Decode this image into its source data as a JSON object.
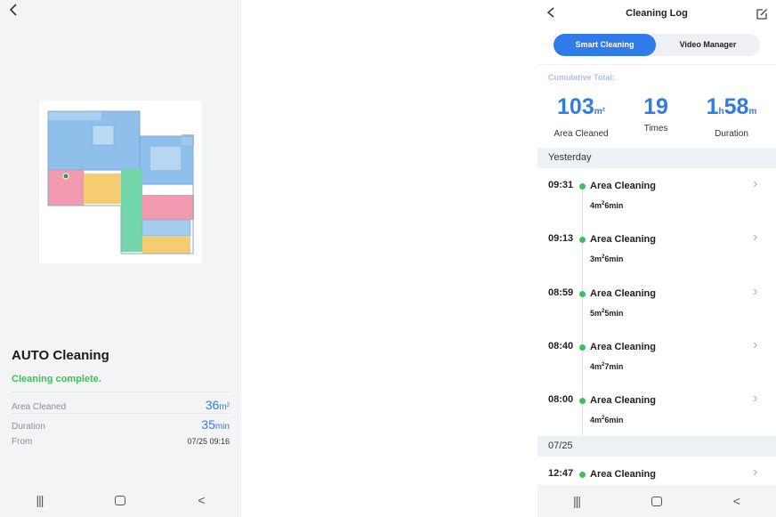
{
  "left": {
    "back_icon": "chevron-left-icon",
    "title": "AUTO Cleaning",
    "status": "Cleaning complete.",
    "rows": [
      {
        "label": "Area Cleaned",
        "value": "36",
        "unit": "m²"
      },
      {
        "label": "Duration",
        "value": "35",
        "unit": "min"
      },
      {
        "label": "From",
        "value": "07/25 09:16",
        "unit": ""
      }
    ],
    "map_colors": {
      "blue": "#7eb6e8",
      "pink": "#f08fa3",
      "yellow": "#f5c96a",
      "green": "#6fd6a6"
    },
    "nav": {
      "recents": "|||",
      "home": "home-icon",
      "back": "<"
    }
  },
  "right": {
    "title": "Cleaning Log",
    "back_icon": "chevron-left-icon",
    "edit_icon": "edit-icon",
    "tabs": [
      {
        "label": "Smart Cleaning",
        "active": true
      },
      {
        "label": "Video Manager",
        "active": false
      }
    ],
    "cumulative_label": "Cumulative Total:",
    "stats": {
      "area": {
        "value": "103",
        "unit": "m²",
        "label": "Area Cleaned"
      },
      "times": {
        "value": "19",
        "label": "Times"
      },
      "duration": {
        "hours": "1",
        "h_unit": "h",
        "minutes": "58",
        "m_unit": "m",
        "label": "Duration"
      }
    },
    "sections": [
      {
        "label": "Yesterday",
        "entries": [
          {
            "time": "09:31",
            "name": "Area Cleaning",
            "area": "4",
            "duration": "6"
          },
          {
            "time": "09:13",
            "name": "Area Cleaning",
            "area": "3",
            "duration": "6"
          },
          {
            "time": "08:59",
            "name": "Area Cleaning",
            "area": "5",
            "duration": "5"
          },
          {
            "time": "08:40",
            "name": "Area Cleaning",
            "area": "4",
            "duration": "7"
          },
          {
            "time": "08:00",
            "name": "Area Cleaning",
            "area": "4",
            "duration": "6"
          }
        ]
      },
      {
        "label": "07/25",
        "entries": [
          {
            "time": "12:47",
            "name": "Area Cleaning",
            "area": "",
            "duration": ""
          }
        ]
      }
    ],
    "detail_units": {
      "area": "m²",
      "duration": "min"
    },
    "accent": "#2f7be8",
    "dot_color": "#3cc154"
  }
}
